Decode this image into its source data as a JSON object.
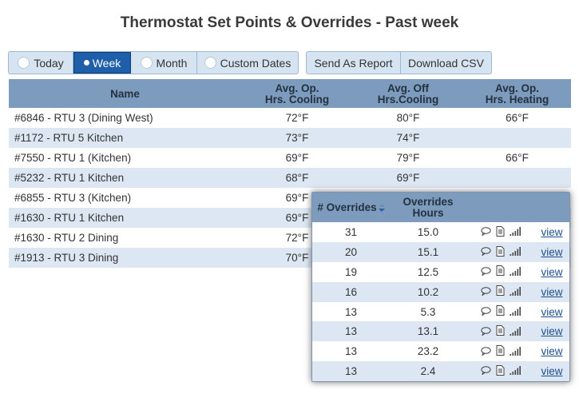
{
  "page": {
    "title": "Thermostat Set Points & Overrides - Past week"
  },
  "range_selector": {
    "options": [
      {
        "label": "Today",
        "active": false
      },
      {
        "label": "Week",
        "active": true
      },
      {
        "label": "Month",
        "active": false
      },
      {
        "label": "Custom Dates",
        "active": false
      }
    ]
  },
  "actions": {
    "send_report": "Send As Report",
    "download_csv": "Download CSV"
  },
  "main_table": {
    "headers": {
      "name": "Name",
      "cooling_l1": "Avg. Op.",
      "cooling_l2": "Hrs. Cooling",
      "off_l1": "Avg. Off",
      "off_l2": "Hrs.Cooling",
      "heating_l1": "Avg. Op.",
      "heating_l2": "Hrs. Heating"
    },
    "rows": [
      {
        "name": "#6846 - RTU 3 (Dining West)",
        "cooling": "72°F",
        "off": "80°F",
        "heating": "66°F"
      },
      {
        "name": "#1172 - RTU 5 Kitchen",
        "cooling": "73°F",
        "off": "74°F",
        "heating": ""
      },
      {
        "name": "#7550 - RTU 1 (Kitchen)",
        "cooling": "69°F",
        "off": "79°F",
        "heating": "66°F"
      },
      {
        "name": "#5232 - RTU 1 Kitchen",
        "cooling": "68°F",
        "off": "69°F",
        "heating": ""
      },
      {
        "name": "#6855 - RTU 3 (Kitchen)",
        "cooling": "69°F",
        "off": "",
        "heating": ""
      },
      {
        "name": "#1630 - RTU 1 Kitchen",
        "cooling": "69°F",
        "off": "",
        "heating": ""
      },
      {
        "name": "#1630 - RTU 2 Dining",
        "cooling": "72°F",
        "off": "",
        "heating": ""
      },
      {
        "name": "#1913 - RTU 3 Dining",
        "cooling": "70°F",
        "off": "",
        "heating": ""
      }
    ]
  },
  "overrides_popup": {
    "headers": {
      "overrides": "# Overrides",
      "hours_l1": "Overrides",
      "hours_l2": "Hours"
    },
    "icons": [
      "comment-icon",
      "document-icon",
      "signal-bars-icon"
    ],
    "view_label": "view",
    "rows": [
      {
        "overrides": "31",
        "hours": "15.0"
      },
      {
        "overrides": "20",
        "hours": "15.1"
      },
      {
        "overrides": "19",
        "hours": "12.5"
      },
      {
        "overrides": "16",
        "hours": "10.2"
      },
      {
        "overrides": "13",
        "hours": "5.3"
      },
      {
        "overrides": "13",
        "hours": "13.1"
      },
      {
        "overrides": "13",
        "hours": "23.2"
      },
      {
        "overrides": "13",
        "hours": "2.4"
      }
    ]
  },
  "colors": {
    "header_bg": "#7c9bbd",
    "row_alt_bg": "#dde7f3",
    "active_btn": "#1f5ea8",
    "link": "#1d4f8c"
  }
}
